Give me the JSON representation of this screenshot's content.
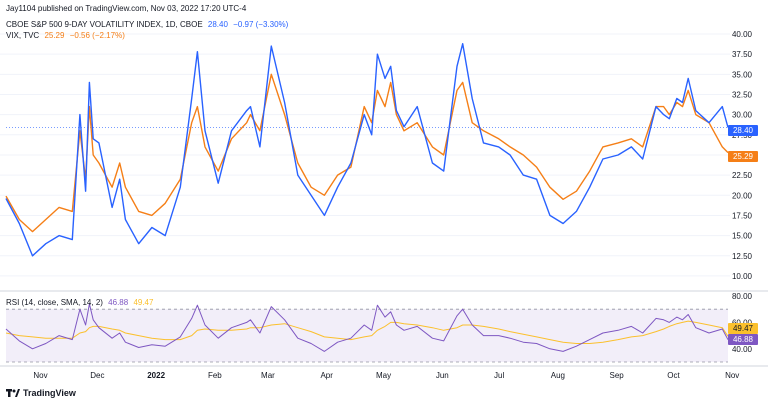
{
  "header": {
    "publisher_line": "Jay1104 published on TradingView.com, Nov 03, 2022 17:20 UTC-4",
    "brand": "TradingView"
  },
  "legend": {
    "vix9d": {
      "name": "CBOE S&P 500 9-DAY VOLATILITY INDEX, 1D, CBOE",
      "value": "28.40",
      "change": "−0.97 (−3.30%)",
      "color": "#2962ff"
    },
    "vix": {
      "name": "VIX, TVC",
      "value": "25.29",
      "change": "−0.56 (−2.17%)",
      "color": "#f57f17"
    },
    "rsi": {
      "name": "RSI (14, close, SMA, 14, 2)",
      "value": "46.88",
      "sma_value": "49.47",
      "color": "#7e57c2",
      "sma_color": "#fbc02d"
    }
  },
  "price_tags": {
    "vix9d": "28.40",
    "vix": "25.29",
    "rsi_sma": "49.47",
    "rsi": "46.88"
  },
  "chart_data": [
    {
      "type": "line",
      "title": "",
      "xlabel": "",
      "ylabel": "",
      "ylim": [
        8.75,
        40.0
      ],
      "y_ticks": [
        "10.00",
        "12.50",
        "15.00",
        "17.50",
        "20.00",
        "22.50",
        "25.00",
        "27.50",
        "30.00",
        "32.50",
        "35.00",
        "37.50",
        "40.00"
      ],
      "x_ticks": [
        "Nov",
        "Dec",
        "2022",
        "Feb",
        "Mar",
        "Apr",
        "May",
        "Jun",
        "Jul",
        "Aug",
        "Sep",
        "Oct",
        "Nov"
      ],
      "x_range": [
        "2021-10-18",
        "2022-11-03"
      ],
      "grid": true,
      "legend_position": "top-left",
      "series": [
        {
          "name": "CBOE S&P 500 9-DAY VOLATILITY INDEX, 1D, CBOE",
          "color": "#2962ff",
          "x": [
            "2021-10-18",
            "2021-10-25",
            "2021-11-01",
            "2021-11-08",
            "2021-11-15",
            "2021-11-22",
            "2021-11-26",
            "2021-11-29",
            "2021-12-01",
            "2021-12-03",
            "2021-12-06",
            "2021-12-13",
            "2021-12-17",
            "2021-12-20",
            "2021-12-27",
            "2022-01-03",
            "2022-01-10",
            "2022-01-18",
            "2022-01-24",
            "2022-01-27",
            "2022-01-31",
            "2022-02-07",
            "2022-02-14",
            "2022-02-22",
            "2022-02-24",
            "2022-03-01",
            "2022-03-07",
            "2022-03-14",
            "2022-03-21",
            "2022-03-28",
            "2022-04-04",
            "2022-04-11",
            "2022-04-18",
            "2022-04-25",
            "2022-04-29",
            "2022-05-02",
            "2022-05-06",
            "2022-05-09",
            "2022-05-12",
            "2022-05-16",
            "2022-05-23",
            "2022-05-31",
            "2022-06-06",
            "2022-06-13",
            "2022-06-16",
            "2022-06-21",
            "2022-06-27",
            "2022-07-05",
            "2022-07-11",
            "2022-07-18",
            "2022-07-25",
            "2022-08-01",
            "2022-08-08",
            "2022-08-15",
            "2022-08-22",
            "2022-08-29",
            "2022-09-06",
            "2022-09-13",
            "2022-09-19",
            "2022-09-26",
            "2022-09-30",
            "2022-10-03",
            "2022-10-07",
            "2022-10-10",
            "2022-10-13",
            "2022-10-17",
            "2022-10-24",
            "2022-10-31",
            "2022-11-03"
          ],
          "values": [
            19.6,
            16.5,
            12.5,
            14.0,
            15.0,
            14.5,
            30.0,
            20.5,
            34.0,
            27.0,
            26.5,
            18.5,
            22.0,
            17.0,
            14.0,
            16.0,
            15.0,
            21.0,
            32.0,
            37.8,
            28.0,
            21.5,
            28.0,
            30.5,
            31.0,
            26.0,
            38.5,
            31.5,
            22.5,
            20.0,
            17.5,
            21.0,
            24.0,
            30.0,
            27.5,
            37.5,
            34.5,
            36.0,
            30.5,
            28.5,
            31.0,
            24.0,
            23.0,
            36.0,
            38.8,
            32.0,
            26.5,
            26.0,
            25.0,
            22.5,
            22.0,
            17.5,
            16.5,
            18.0,
            21.0,
            24.5,
            25.0,
            26.0,
            24.5,
            31.0,
            30.0,
            29.5,
            32.0,
            31.5,
            34.5,
            30.5,
            29.0,
            31.0,
            28.4
          ]
        },
        {
          "name": "VIX, TVC",
          "color": "#f57f17",
          "x": [
            "2021-10-18",
            "2021-10-25",
            "2021-11-01",
            "2021-11-08",
            "2021-11-15",
            "2021-11-22",
            "2021-11-26",
            "2021-11-29",
            "2021-12-01",
            "2021-12-03",
            "2021-12-06",
            "2021-12-13",
            "2021-12-17",
            "2021-12-20",
            "2021-12-27",
            "2022-01-03",
            "2022-01-10",
            "2022-01-18",
            "2022-01-24",
            "2022-01-27",
            "2022-01-31",
            "2022-02-07",
            "2022-02-14",
            "2022-02-22",
            "2022-02-24",
            "2022-03-01",
            "2022-03-07",
            "2022-03-14",
            "2022-03-21",
            "2022-03-28",
            "2022-04-04",
            "2022-04-11",
            "2022-04-18",
            "2022-04-25",
            "2022-04-29",
            "2022-05-02",
            "2022-05-06",
            "2022-05-09",
            "2022-05-12",
            "2022-05-16",
            "2022-05-23",
            "2022-05-31",
            "2022-06-06",
            "2022-06-13",
            "2022-06-16",
            "2022-06-21",
            "2022-06-27",
            "2022-07-05",
            "2022-07-11",
            "2022-07-18",
            "2022-07-25",
            "2022-08-01",
            "2022-08-08",
            "2022-08-15",
            "2022-08-22",
            "2022-08-29",
            "2022-09-06",
            "2022-09-13",
            "2022-09-19",
            "2022-09-26",
            "2022-09-30",
            "2022-10-03",
            "2022-10-07",
            "2022-10-10",
            "2022-10-13",
            "2022-10-17",
            "2022-10-24",
            "2022-10-31",
            "2022-11-03"
          ],
          "values": [
            19.9,
            17.0,
            15.5,
            17.0,
            18.5,
            18.0,
            28.0,
            22.0,
            31.0,
            25.0,
            24.0,
            21.0,
            24.0,
            21.0,
            18.0,
            17.5,
            19.0,
            22.0,
            29.0,
            31.0,
            26.0,
            23.0,
            27.0,
            29.0,
            30.0,
            28.0,
            35.0,
            30.0,
            24.0,
            21.0,
            20.0,
            22.5,
            23.5,
            31.0,
            29.0,
            33.0,
            31.0,
            34.0,
            30.0,
            28.0,
            29.0,
            26.0,
            25.0,
            33.0,
            34.0,
            29.0,
            28.0,
            27.0,
            26.0,
            25.0,
            23.5,
            21.0,
            19.5,
            20.5,
            23.0,
            26.0,
            26.5,
            27.0,
            26.0,
            31.0,
            31.0,
            30.0,
            31.5,
            31.0,
            33.0,
            30.0,
            29.0,
            26.0,
            25.29
          ]
        }
      ]
    },
    {
      "type": "line",
      "title": "RSI (14, close, SMA, 14, 2)",
      "xlabel": "",
      "ylabel": "",
      "ylim": [
        30,
        80
      ],
      "y_ticks": [
        "40.00",
        "60.00",
        "80.00"
      ],
      "band": [
        30,
        70
      ],
      "grid": true,
      "series": [
        {
          "name": "RSI",
          "color": "#7e57c2",
          "values": [
            55,
            46,
            40,
            44,
            50,
            47,
            70,
            58,
            74,
            62,
            56,
            48,
            52,
            45,
            41,
            43,
            42,
            49,
            63,
            73,
            58,
            48,
            56,
            60,
            62,
            52,
            72,
            62,
            48,
            44,
            38,
            45,
            48,
            58,
            54,
            73,
            64,
            68,
            58,
            54,
            57,
            48,
            46,
            65,
            70,
            58,
            50,
            50,
            48,
            45,
            44,
            40,
            38,
            42,
            47,
            52,
            54,
            57,
            52,
            63,
            62,
            60,
            64,
            62,
            66,
            56,
            52,
            55,
            46.88
          ]
        },
        {
          "name": "SMA",
          "color": "#fbc02d",
          "values": [
            52,
            50,
            49,
            48,
            48,
            48,
            52,
            53,
            56,
            57,
            57,
            55,
            54,
            52,
            50,
            48,
            47,
            47,
            50,
            54,
            55,
            54,
            54,
            55,
            56,
            56,
            58,
            59,
            56,
            53,
            49,
            48,
            47,
            49,
            50,
            54,
            57,
            60,
            60,
            59,
            58,
            56,
            54,
            56,
            58,
            58,
            57,
            55,
            53,
            51,
            49,
            47,
            45,
            44,
            44,
            45,
            47,
            49,
            50,
            53,
            55,
            57,
            59,
            60,
            61,
            60,
            58,
            56,
            49.47
          ]
        }
      ]
    }
  ]
}
